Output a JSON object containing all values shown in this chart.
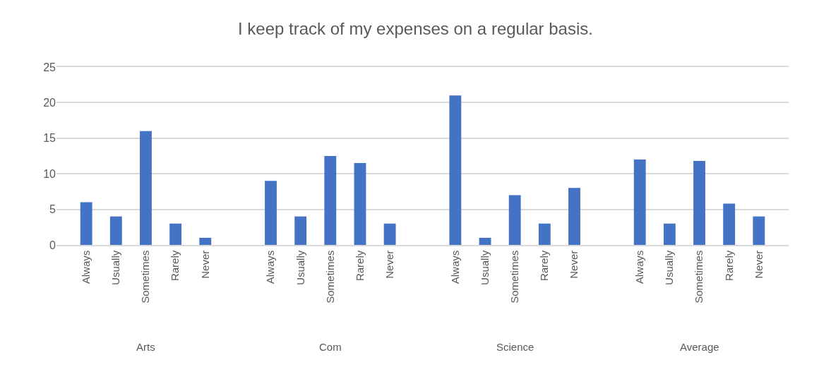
{
  "chart_data": {
    "type": "bar",
    "title": "I keep track of my expenses on a regular basis.",
    "categories": [
      "Always",
      "Usually",
      "Sometimes",
      "Rarely",
      "Never",
      "Always",
      "Usually",
      "Sometimes",
      "Rarely",
      "Never",
      "Always",
      "Usually",
      "Sometimes",
      "Rarely",
      "Never",
      "Always",
      "Usually",
      "Sometimes",
      "Rarely",
      "Never"
    ],
    "values": [
      6,
      4,
      16,
      3,
      1,
      9,
      4,
      12.5,
      11.5,
      3,
      21,
      1,
      7,
      3,
      8,
      12,
      3,
      11.8,
      5.8,
      4
    ],
    "color": "#4472c4",
    "annotations": [
      "Arts",
      "Com",
      "Science",
      "Average"
    ],
    "ylim": [
      0,
      25
    ],
    "yticks": [
      0,
      5,
      10,
      15,
      20,
      25
    ],
    "grid": "y"
  }
}
